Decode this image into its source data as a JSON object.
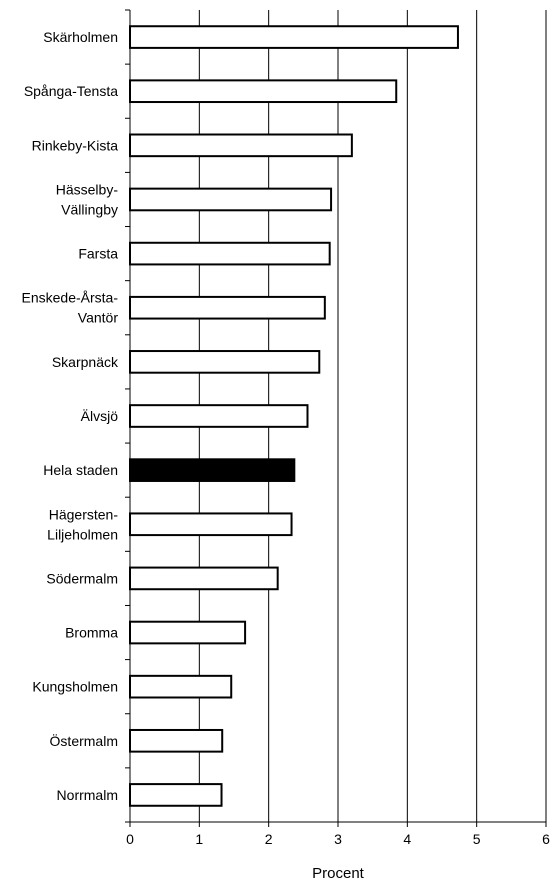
{
  "chart_data": {
    "type": "bar",
    "orientation": "horizontal",
    "title": "",
    "xlabel": "Procent",
    "ylabel": "",
    "xlim": [
      0,
      6
    ],
    "xticks": [
      0,
      1,
      2,
      3,
      4,
      5,
      6
    ],
    "grid": "vertical lines at x ticks",
    "legend": "none",
    "colors": {
      "bar": "#ffffff",
      "highlight": "#000000",
      "outline": "#000000"
    },
    "bars": [
      {
        "label": "Skärholmen",
        "lines": [
          "Skärholmen"
        ],
        "value": 4.73,
        "highlight": false
      },
      {
        "label": "Spånga-Tensta",
        "lines": [
          "Spånga-Tensta"
        ],
        "value": 3.84,
        "highlight": false
      },
      {
        "label": "Rinkeby-Kista",
        "lines": [
          "Rinkeby-Kista"
        ],
        "value": 3.2,
        "highlight": false
      },
      {
        "label": "Hässelby-Vällingby",
        "lines": [
          "Hässelby-",
          "Vällingby"
        ],
        "value": 2.9,
        "highlight": false
      },
      {
        "label": "Farsta",
        "lines": [
          "Farsta"
        ],
        "value": 2.88,
        "highlight": false
      },
      {
        "label": "Enskede-Årsta-Vantör",
        "lines": [
          "Enskede-Årsta-",
          "Vantör"
        ],
        "value": 2.81,
        "highlight": false
      },
      {
        "label": "Skarpnäck",
        "lines": [
          "Skarpnäck"
        ],
        "value": 2.73,
        "highlight": false
      },
      {
        "label": "Älvsjö",
        "lines": [
          "Älvsjö"
        ],
        "value": 2.56,
        "highlight": false
      },
      {
        "label": "Hela staden",
        "lines": [
          "Hela staden"
        ],
        "value": 2.37,
        "highlight": true
      },
      {
        "label": "Hägersten-Liljeholmen",
        "lines": [
          "Hägersten-",
          "Liljeholmen"
        ],
        "value": 2.33,
        "highlight": false
      },
      {
        "label": "Södermalm",
        "lines": [
          "Södermalm"
        ],
        "value": 2.13,
        "highlight": false
      },
      {
        "label": "Bromma",
        "lines": [
          "Bromma"
        ],
        "value": 1.66,
        "highlight": false
      },
      {
        "label": "Kungsholmen",
        "lines": [
          "Kungsholmen"
        ],
        "value": 1.46,
        "highlight": false
      },
      {
        "label": "Östermalm",
        "lines": [
          "Östermalm"
        ],
        "value": 1.33,
        "highlight": false
      },
      {
        "label": "Norrmalm",
        "lines": [
          "Norrmalm"
        ],
        "value": 1.32,
        "highlight": false
      }
    ]
  }
}
